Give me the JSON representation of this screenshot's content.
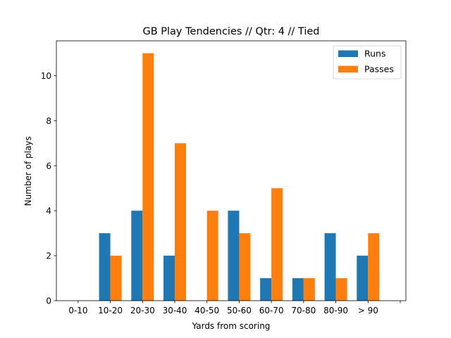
{
  "chart_data": {
    "type": "bar",
    "title": "GB Play Tendencies // Qtr: 4 // Tied",
    "xlabel": "Yards from scoring",
    "ylabel": "Number of plays",
    "categories": [
      "0-10",
      "10-20",
      "20-30",
      "30-40",
      "40-50",
      "50-60",
      "60-70",
      "70-80",
      "80-90",
      "> 90",
      ""
    ],
    "series": [
      {
        "name": "Runs",
        "color": "#1f77b4",
        "values": [
          0,
          3,
          4,
          2,
          0,
          4,
          1,
          1,
          3,
          2,
          0
        ]
      },
      {
        "name": "Passes",
        "color": "#ff7f0e",
        "values": [
          0,
          2,
          11,
          7,
          4,
          3,
          5,
          1,
          1,
          3,
          0
        ]
      }
    ],
    "yticks": [
      0,
      2,
      4,
      6,
      8,
      10
    ],
    "ylim": [
      0,
      11.55
    ],
    "grid": false,
    "legend_position": "top-right"
  }
}
